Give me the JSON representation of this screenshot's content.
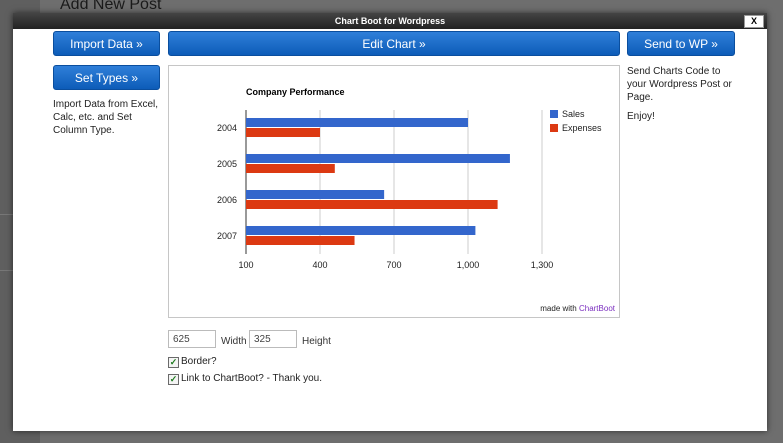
{
  "background": {
    "page_title": "Add New Post"
  },
  "modal": {
    "title": "Chart Boot for Wordpress",
    "close_label": "X"
  },
  "toolbar": {
    "import_label": "Import Data »",
    "edit_label": "Edit Chart »",
    "send_label": "Send to WP »",
    "set_types_label": "Set Types »"
  },
  "side": {
    "left_text": "Import Data from Excel, Calc, etc. and Set Column Type.",
    "right_text": "Send Charts Code to your Wordpress Post or Page.",
    "right_enjoy": "Enjoy!"
  },
  "chart_footer": {
    "made_with": "made with",
    "brand": "ChartBoot"
  },
  "size": {
    "width_value": "625",
    "width_label": "Width",
    "height_value": "325",
    "height_label": "Height"
  },
  "options": {
    "border_label": "Border?",
    "link_label": "Link to ChartBoot? - Thank you."
  },
  "colors": {
    "sales": "#3366cc",
    "expenses": "#dc3912"
  },
  "chart_data": {
    "type": "bar",
    "orientation": "horizontal",
    "title": "Company Performance",
    "categories": [
      "2004",
      "2005",
      "2006",
      "2007"
    ],
    "series": [
      {
        "name": "Sales",
        "values": [
          1000,
          1170,
          660,
          1030
        ]
      },
      {
        "name": "Expenses",
        "values": [
          400,
          460,
          1120,
          540
        ]
      }
    ],
    "xlim": [
      100,
      1300
    ],
    "xticks": [
      100,
      400,
      700,
      1000,
      1300
    ],
    "xtick_labels": [
      "100",
      "400",
      "700",
      "1,000",
      "1,300"
    ],
    "grid": true,
    "legend_position": "right"
  }
}
